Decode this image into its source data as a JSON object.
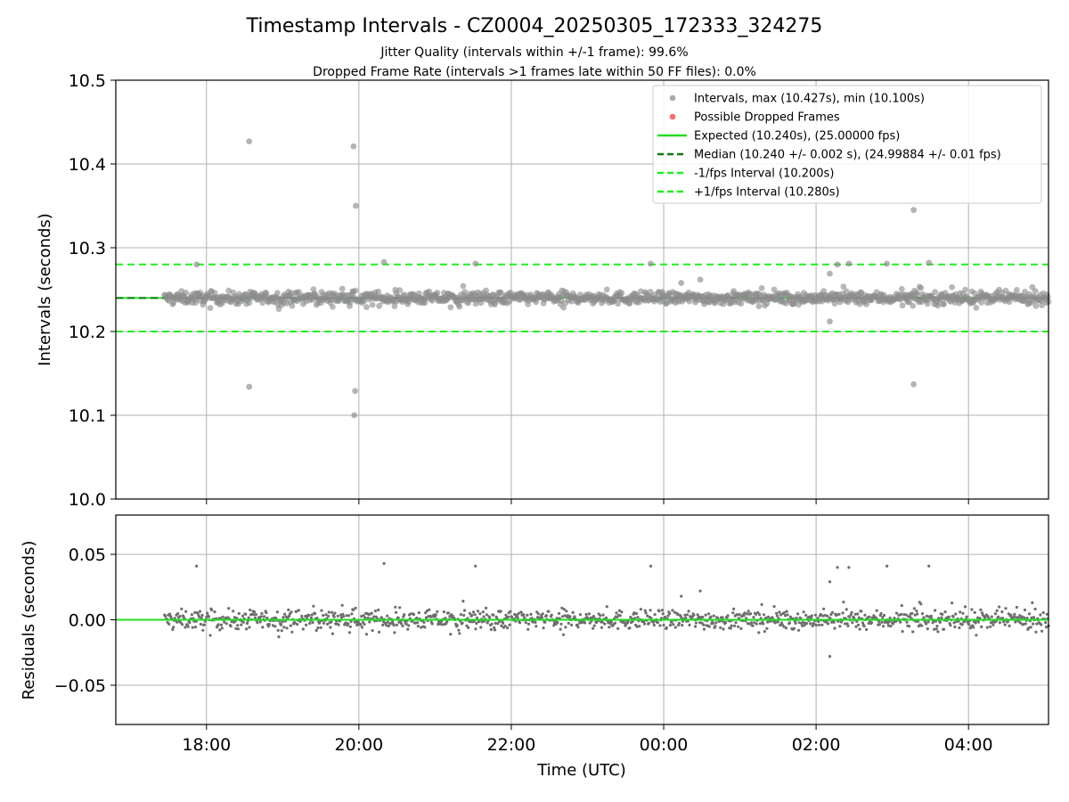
{
  "chart_data": [
    {
      "type": "scatter",
      "title": "Timestamp Intervals - CZ0004_20250305_172333_324275",
      "subtitles": [
        "Jitter Quality (intervals within +/-1 frame): 99.6%",
        "Dropped Frame Rate (intervals >1 frames late within 50 FF files): 0.0%"
      ],
      "ylabel": "Intervals (seconds)",
      "ylim": [
        10.0,
        10.5
      ],
      "yticks": [
        "10.0",
        "10.1",
        "10.2",
        "10.3",
        "10.4",
        "10.5"
      ],
      "x_range_hours": [
        16.81,
        29.05
      ],
      "xticks": [
        {
          "t": 18,
          "label": "18:00"
        },
        {
          "t": 20,
          "label": "20:00"
        },
        {
          "t": 22,
          "label": "22:00"
        },
        {
          "t": 24,
          "label": "00:00"
        },
        {
          "t": 26,
          "label": "02:00"
        },
        {
          "t": 28,
          "label": "04:00"
        }
      ],
      "grid": true,
      "legend_position": "upper right",
      "legend": [
        {
          "kind": "marker",
          "color": "#a0a0a0",
          "label": "Intervals, max (10.427s), min (10.100s)"
        },
        {
          "kind": "marker",
          "color": "#f06060",
          "label": "Possible Dropped Frames"
        },
        {
          "kind": "line",
          "color": "#22dd22",
          "dash": false,
          "label": "Expected (10.240s), (25.00000 fps)"
        },
        {
          "kind": "line",
          "color": "#117711",
          "dash": true,
          "label": "Median (10.240 +/- 0.002 s), (24.99884 +/- 0.01 fps)"
        },
        {
          "kind": "line",
          "color": "#22ee22",
          "dash": true,
          "label": "-1/fps Interval (10.200s)"
        },
        {
          "kind": "line",
          "color": "#22ee22",
          "dash": true,
          "label": "+1/fps Interval (10.280s)"
        }
      ],
      "reference_lines": [
        {
          "name": "Expected",
          "y": 10.24,
          "color": "#22dd22",
          "dash": false
        },
        {
          "name": "Median",
          "y": 10.24,
          "color": "#117711",
          "dash": true
        },
        {
          "name": "-1/fps",
          "y": 10.2,
          "color": "#22ee22",
          "dash": true
        },
        {
          "name": "+1/fps",
          "y": 10.28,
          "color": "#22ee22",
          "dash": true
        }
      ],
      "series_note_points": "x in decimal hours UTC since 00:00 on the start day (values >24 are after midnight)",
      "outliers": [
        {
          "t": 17.87,
          "y": 10.28
        },
        {
          "t": 18.56,
          "y": 10.427
        },
        {
          "t": 18.56,
          "y": 10.134
        },
        {
          "t": 19.93,
          "y": 10.421
        },
        {
          "t": 19.96,
          "y": 10.35
        },
        {
          "t": 19.95,
          "y": 10.129
        },
        {
          "t": 19.94,
          "y": 10.1
        },
        {
          "t": 20.33,
          "y": 10.283
        },
        {
          "t": 21.53,
          "y": 10.281
        },
        {
          "t": 23.83,
          "y": 10.281
        },
        {
          "t": 24.23,
          "y": 10.258
        },
        {
          "t": 24.48,
          "y": 10.262
        },
        {
          "t": 26.18,
          "y": 10.269
        },
        {
          "t": 26.18,
          "y": 10.212
        },
        {
          "t": 26.28,
          "y": 10.28
        },
        {
          "t": 26.43,
          "y": 10.281
        },
        {
          "t": 26.93,
          "y": 10.281
        },
        {
          "t": 27.28,
          "y": 10.345
        },
        {
          "t": 27.28,
          "y": 10.137
        },
        {
          "t": 27.48,
          "y": 10.282
        }
      ],
      "dense_band": {
        "t_start": 17.45,
        "t_end": 29.05,
        "center": 10.24,
        "spread": 0.004
      }
    },
    {
      "type": "scatter",
      "ylabel": "Residuals (seconds)",
      "xlabel": "Time (UTC)",
      "ylim": [
        -0.08,
        0.08
      ],
      "yticks": [
        {
          "v": 0.05,
          "label": "0.05"
        },
        {
          "v": 0.0,
          "label": "0.00"
        },
        {
          "v": -0.05,
          "label": "−0.05"
        }
      ],
      "reference_lines": [
        {
          "name": "Median",
          "y": 0.0,
          "color": "#117711",
          "dash": true
        },
        {
          "name": "Expected",
          "y": 0.0,
          "color": "#22dd22",
          "dash": false
        }
      ],
      "outliers": [
        {
          "t": 17.87,
          "y": 0.041
        },
        {
          "t": 20.33,
          "y": 0.043
        },
        {
          "t": 21.53,
          "y": 0.041
        },
        {
          "t": 23.83,
          "y": 0.041
        },
        {
          "t": 24.23,
          "y": 0.018
        },
        {
          "t": 24.48,
          "y": 0.022
        },
        {
          "t": 26.18,
          "y": 0.029
        },
        {
          "t": 26.18,
          "y": -0.028
        },
        {
          "t": 26.28,
          "y": 0.04
        },
        {
          "t": 26.43,
          "y": 0.04
        },
        {
          "t": 26.93,
          "y": 0.041
        },
        {
          "t": 27.48,
          "y": 0.041
        }
      ],
      "dense_band": {
        "t_start": 17.45,
        "t_end": 29.05,
        "center": 0.0,
        "spread": 0.004
      }
    }
  ]
}
